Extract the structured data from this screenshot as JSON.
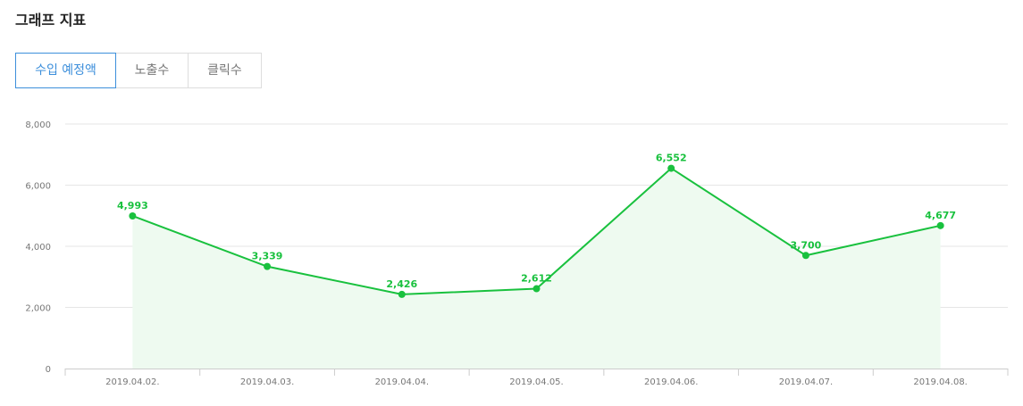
{
  "header": {
    "title": "그래프 지표"
  },
  "tabs": [
    {
      "label": "수입 예정액",
      "active": true
    },
    {
      "label": "노출수",
      "active": false
    },
    {
      "label": "클릭수",
      "active": false
    }
  ],
  "colors": {
    "series": "#19c13e",
    "area": "#eefaf0",
    "tab_active": "#3d8fdb",
    "grid": "#e6e6e6"
  },
  "chart_data": {
    "type": "area",
    "categories": [
      "2019.04.02.",
      "2019.04.03.",
      "2019.04.04.",
      "2019.04.05.",
      "2019.04.06.",
      "2019.04.07.",
      "2019.04.08."
    ],
    "series": [
      {
        "values": [
          4993,
          3339,
          2426,
          2612,
          6552,
          3700,
          4677
        ]
      }
    ],
    "data_labels": [
      "4,993",
      "3,339",
      "2,426",
      "2,612",
      "6,552",
      "3,700",
      "4,677"
    ],
    "yticks": [
      0,
      2000,
      4000,
      6000,
      8000
    ],
    "ytick_labels": [
      "0",
      "2,000",
      "4,000",
      "6,000",
      "8,000"
    ],
    "ylim": [
      0,
      8000
    ],
    "grid": true,
    "legend": "none"
  }
}
